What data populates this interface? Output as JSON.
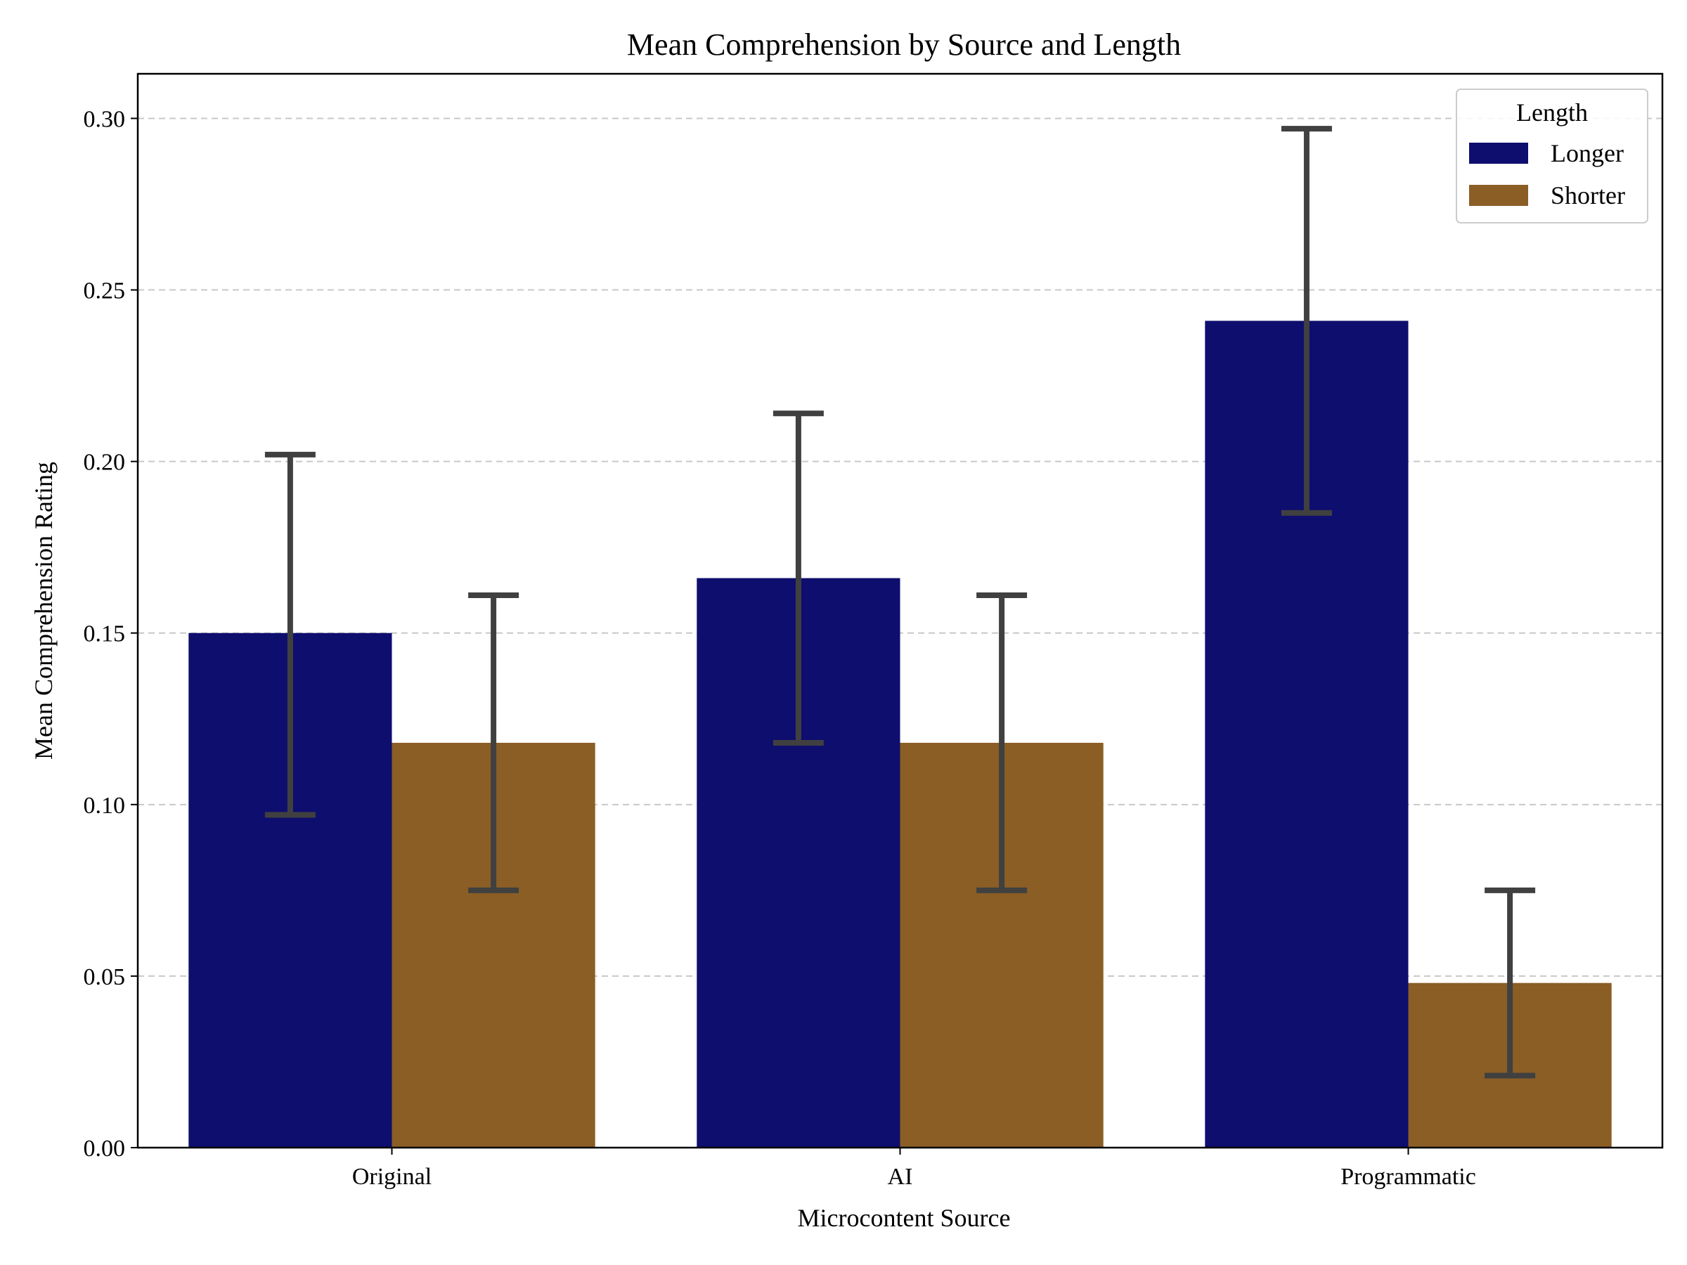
{
  "chart_data": {
    "type": "bar",
    "title": "Mean Comprehension by Source and Length",
    "xlabel": "Microcontent Source",
    "ylabel": "Mean Comprehension Rating",
    "categories": [
      "Original",
      "AI",
      "Programmatic"
    ],
    "ylim": [
      0,
      0.313
    ],
    "yticks": [
      0.0,
      0.05,
      0.1,
      0.15,
      0.2,
      0.25,
      0.3
    ],
    "ytick_labels": [
      "0.00",
      "0.05",
      "0.10",
      "0.15",
      "0.20",
      "0.25",
      "0.30"
    ],
    "grid": "horizontal dashed",
    "legend": {
      "title": "Length",
      "placement": "top-right"
    },
    "error_bar_color": "#404040",
    "series": [
      {
        "name": "Longer",
        "color": "#0e0e6e",
        "values": [
          0.15,
          0.166,
          0.241
        ],
        "error_low": [
          0.097,
          0.118,
          0.185
        ],
        "error_high": [
          0.202,
          0.214,
          0.297
        ]
      },
      {
        "name": "Shorter",
        "color": "#8b5e26",
        "values": [
          0.118,
          0.118,
          0.048
        ],
        "error_low": [
          0.075,
          0.075,
          0.021
        ],
        "error_high": [
          0.161,
          0.161,
          0.075
        ]
      }
    ]
  }
}
